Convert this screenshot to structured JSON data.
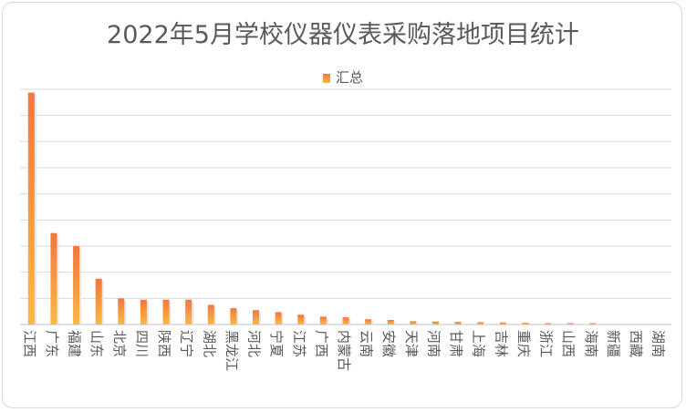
{
  "chart_data": {
    "type": "bar",
    "title": "2022年5月学校仪器仪表采购落地项目统计",
    "xlabel": "",
    "ylabel": "",
    "legend": {
      "position": "top",
      "entries": [
        "汇总"
      ]
    },
    "grid": true,
    "ylim": [
      0,
      36
    ],
    "categories": [
      "江西",
      "广东",
      "福建",
      "山东",
      "北京",
      "四川",
      "陕西",
      "辽宁",
      "湖北",
      "黑龙江",
      "河北",
      "宁夏",
      "江苏",
      "广西",
      "内蒙古",
      "云南",
      "安徽",
      "天津",
      "河南",
      "甘肃",
      "上海",
      "吉林",
      "重庆",
      "浙江",
      "山西",
      "海南",
      "新疆",
      "西藏",
      "湖南"
    ],
    "series": [
      {
        "name": "汇总",
        "values": [
          35.5,
          14,
          12,
          7,
          4,
          3.8,
          3.8,
          3.8,
          3,
          2.5,
          2.2,
          1.9,
          1.5,
          1.2,
          1.1,
          0.8,
          0.7,
          0.5,
          0.45,
          0.4,
          0.35,
          0.3,
          0.25,
          0.2,
          0.2,
          0.2,
          0,
          0,
          0
        ]
      }
    ],
    "colors": {
      "bar_top": "#f4763f",
      "bar_bottom": "#fbb942",
      "grid": "#d9d9d9",
      "text": "#595959"
    }
  }
}
